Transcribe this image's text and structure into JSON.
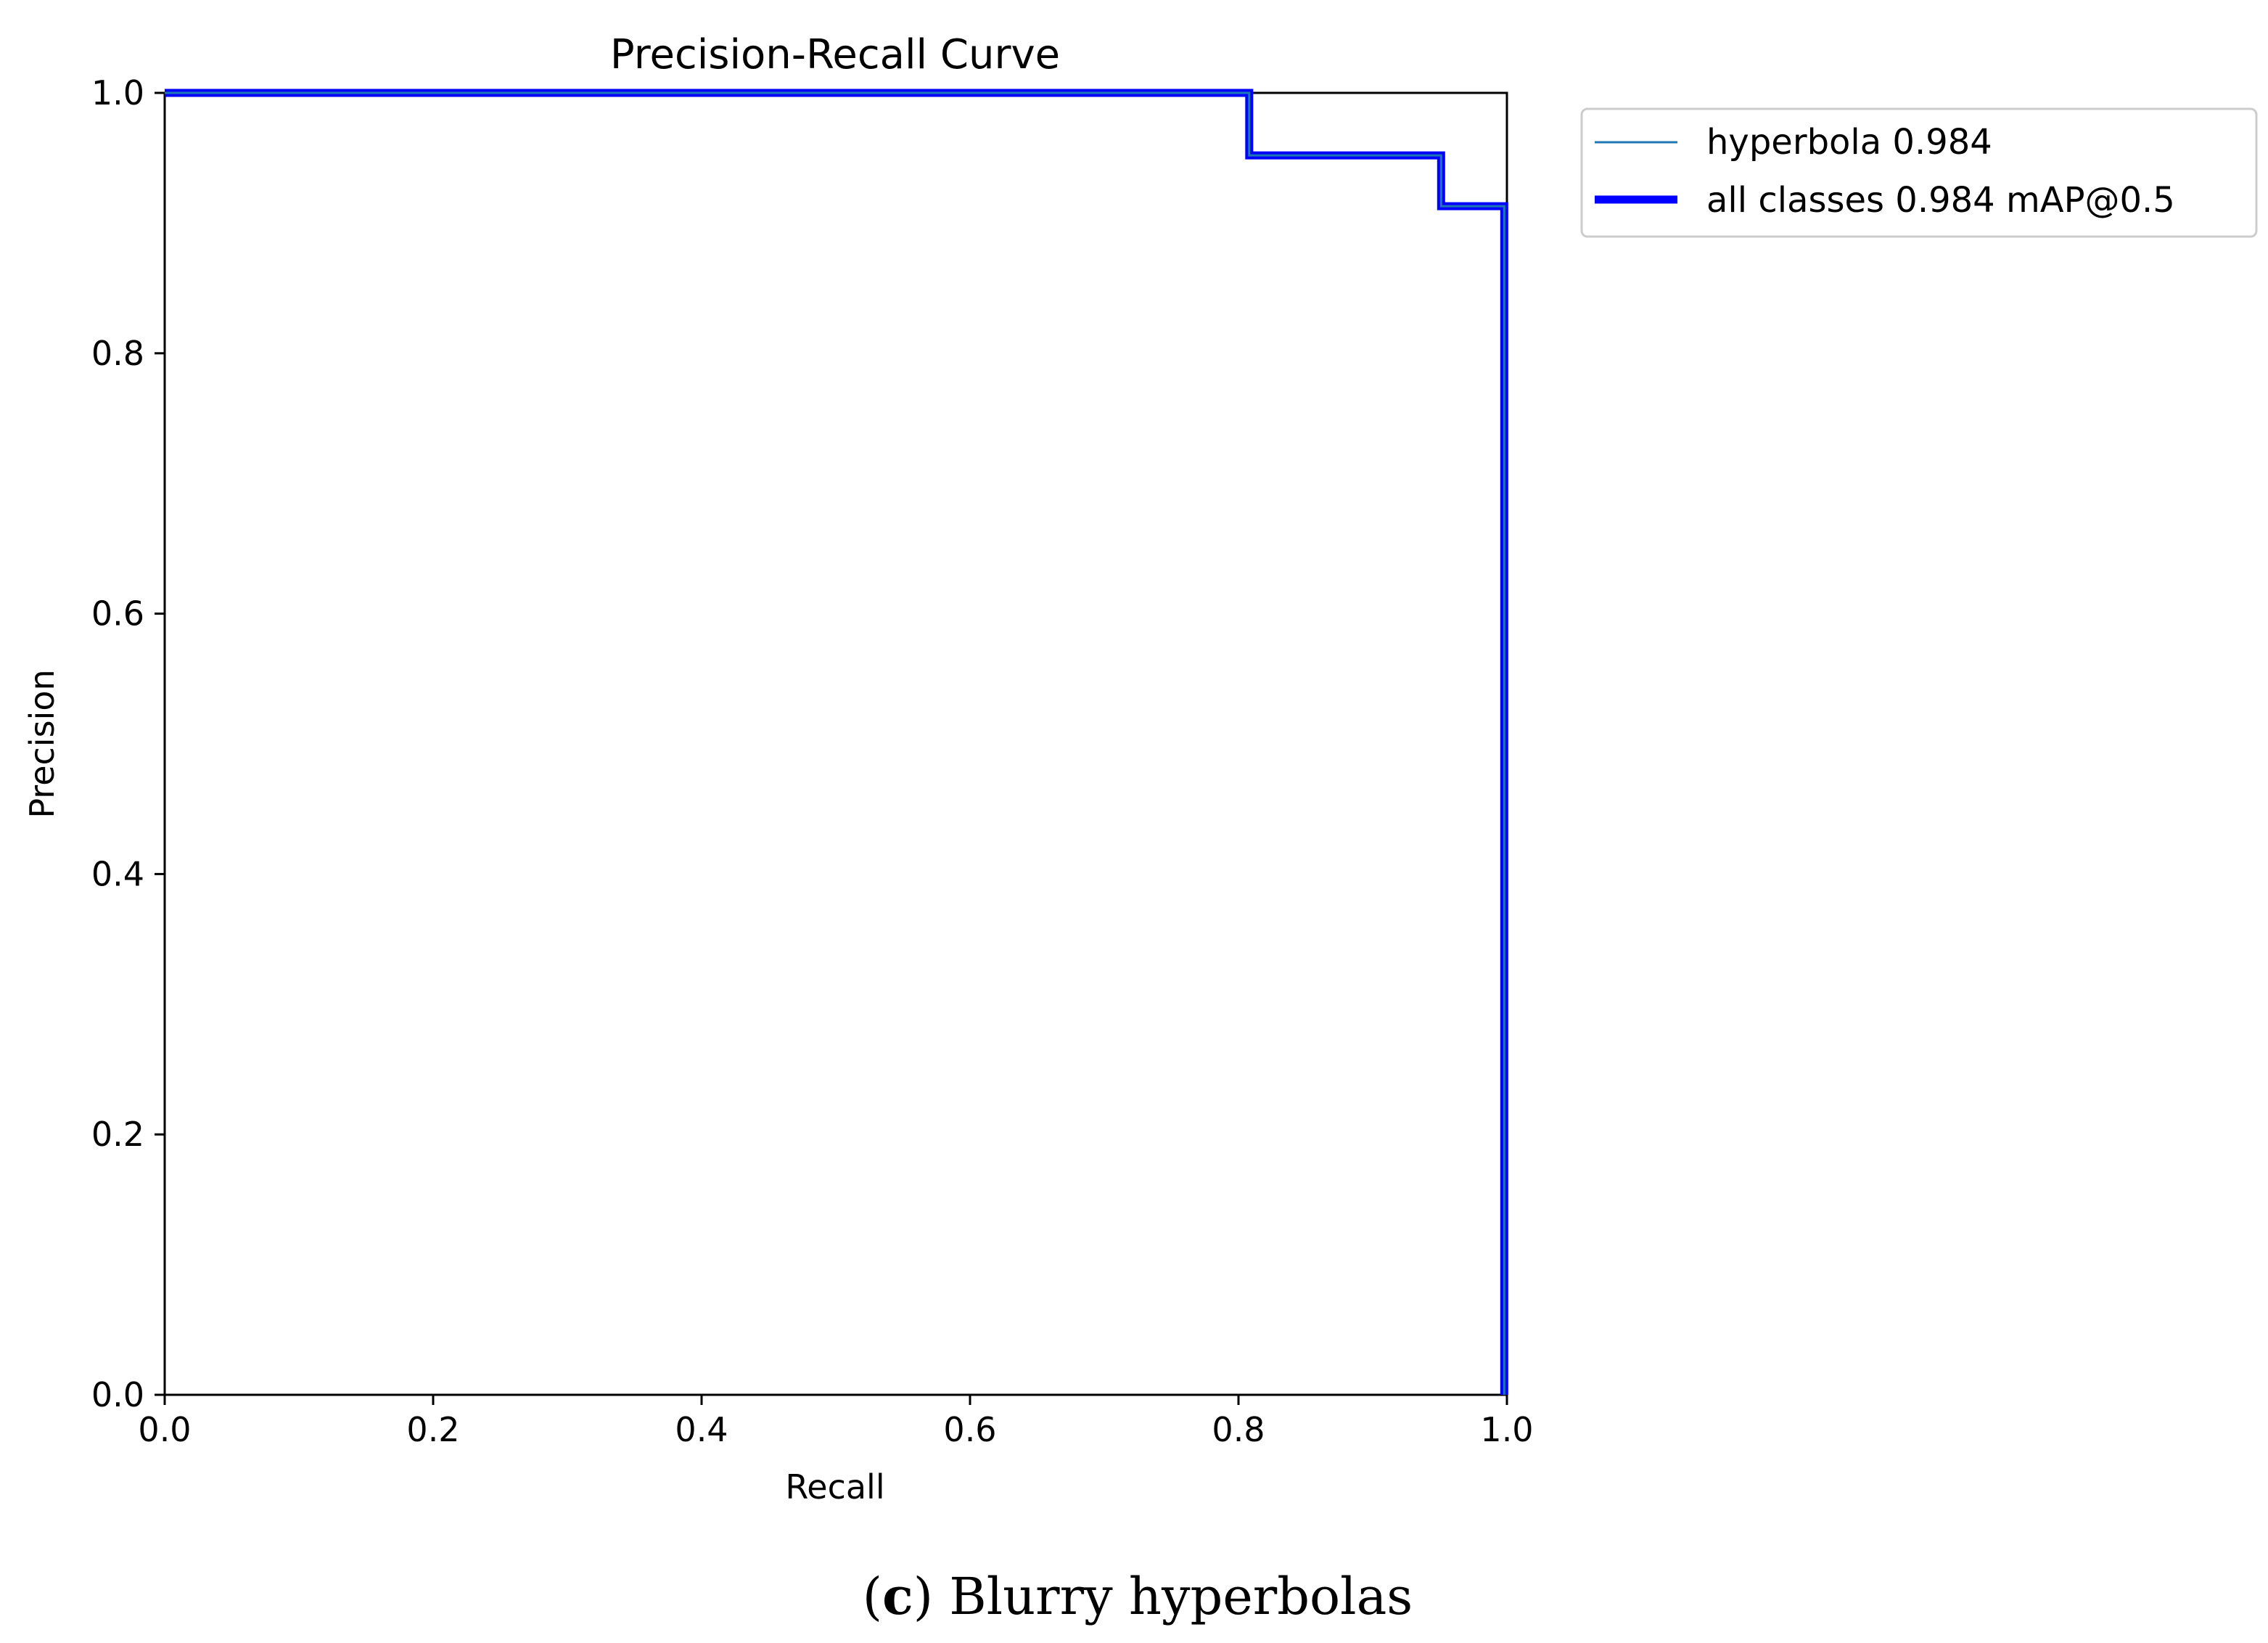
{
  "chart_data": {
    "type": "line",
    "title": "Precision-Recall Curve",
    "xlabel": "Recall",
    "ylabel": "Precision",
    "xlim": [
      0.0,
      1.0
    ],
    "ylim": [
      0.0,
      1.0
    ],
    "xticks": [
      "0.0",
      "0.2",
      "0.4",
      "0.6",
      "0.8",
      "1.0"
    ],
    "yticks": [
      "0.0",
      "0.2",
      "0.4",
      "0.6",
      "0.8",
      "1.0"
    ],
    "grid": false,
    "legend_position": "outside-top-right",
    "series": [
      {
        "name": "hyperbola 0.984",
        "color": "#1f77b4",
        "line_width": "thin",
        "x": [
          0.0,
          0.808,
          0.808,
          0.951,
          0.951,
          0.998,
          0.998
        ],
        "y": [
          1.0,
          1.0,
          0.952,
          0.952,
          0.913,
          0.913,
          0.0
        ]
      },
      {
        "name": "all classes 0.984 mAP@0.5",
        "color": "#0000ff",
        "line_width": "thick",
        "x": [
          0.0,
          0.808,
          0.808,
          0.951,
          0.951,
          0.998,
          0.998
        ],
        "y": [
          1.0,
          1.0,
          0.952,
          0.952,
          0.913,
          0.913,
          0.0
        ]
      }
    ]
  },
  "caption": {
    "letter": "c",
    "text": "Blurry hyperbolas"
  }
}
